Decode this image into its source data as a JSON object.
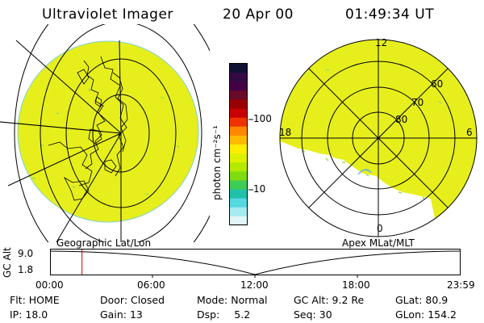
{
  "header": {
    "title": "Ultraviolet Imager",
    "date": "20 Apr 00",
    "time": "01:49:34 UT"
  },
  "colors": {
    "fill": "#e6ef1c",
    "fill_speck": "#9fd85a",
    "grid": "#000000",
    "marker": "#cc0000"
  },
  "colorbar": {
    "unit": "photon cm⁻²s⁻¹",
    "ticks": [
      "100",
      "10"
    ],
    "colors": [
      "#111133",
      "#330a44",
      "#440044",
      "#6a0a2a",
      "#990000",
      "#c80000",
      "#ee3300",
      "#ff8800",
      "#ffbb00",
      "#ffee00",
      "#ddf000",
      "#b5ea00",
      "#7fdc11",
      "#3fcc55",
      "#22c0aa",
      "#55d8e0",
      "#a6ebf0",
      "#e0f6f7"
    ]
  },
  "left_panel": {
    "label": "Geographic Lat/Lon"
  },
  "right_panel": {
    "label": "Apex MLat/MLT",
    "mlt_labels": {
      "top": "12",
      "left": "18",
      "right": "6",
      "bottom": "0"
    },
    "lat_labels": [
      "60",
      "70",
      "80"
    ]
  },
  "timeline": {
    "axis_label": "GC Alt",
    "y_ticks": [
      "9.0",
      "1.8"
    ],
    "x_ticks": [
      "00:00",
      "06:00",
      "12:00",
      "18:00",
      "23:59"
    ],
    "current_hour": 1.83
  },
  "info": {
    "row1": [
      {
        "label": "Flt:",
        "value": "HOME"
      },
      {
        "label": "Door:",
        "value": "Closed"
      },
      {
        "label": "Mode:",
        "value": "Normal"
      },
      {
        "label": "GC Alt:",
        "value": "9.2 Re"
      },
      {
        "label": "GLat:",
        "value": "80.9"
      }
    ],
    "row2": [
      {
        "label": "IP:",
        "value": "18.0"
      },
      {
        "label": "Gain:",
        "value": "13"
      },
      {
        "label": "Dsp:",
        "value": "5.2"
      },
      {
        "label": "Seq:",
        "value": "30"
      },
      {
        "label": "GLon:",
        "value": "154.2"
      }
    ]
  }
}
